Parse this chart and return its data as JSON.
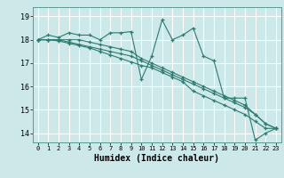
{
  "title": "",
  "xlabel": "Humidex (Indice chaleur)",
  "background_color": "#cce8e8",
  "grid_color": "#ffffff",
  "line_color": "#2d7a6e",
  "xlim": [
    -0.5,
    23.5
  ],
  "ylim": [
    13.6,
    19.4
  ],
  "yticks": [
    14,
    15,
    16,
    17,
    18,
    19
  ],
  "xticks": [
    0,
    1,
    2,
    3,
    4,
    5,
    6,
    7,
    8,
    9,
    10,
    11,
    12,
    13,
    14,
    15,
    16,
    17,
    18,
    19,
    20,
    21,
    22,
    23
  ],
  "series": [
    [
      18.0,
      18.2,
      18.1,
      18.3,
      18.2,
      18.2,
      18.0,
      18.3,
      18.3,
      18.35,
      16.3,
      17.3,
      18.85,
      18.0,
      18.2,
      18.5,
      17.3,
      17.1,
      15.5,
      15.5,
      15.5,
      13.7,
      14.0,
      14.2
    ],
    [
      18.0,
      18.0,
      18.0,
      18.0,
      18.0,
      17.9,
      17.8,
      17.7,
      17.6,
      17.5,
      17.2,
      17.0,
      16.8,
      16.6,
      16.4,
      16.2,
      16.0,
      15.8,
      15.6,
      15.4,
      15.2,
      14.8,
      14.4,
      14.2
    ],
    [
      18.0,
      18.0,
      18.0,
      17.9,
      17.8,
      17.7,
      17.6,
      17.5,
      17.4,
      17.3,
      17.1,
      16.9,
      16.7,
      16.5,
      16.3,
      16.1,
      15.9,
      15.7,
      15.5,
      15.3,
      15.1,
      14.8,
      14.4,
      14.2
    ],
    [
      18.0,
      18.0,
      17.95,
      17.85,
      17.75,
      17.65,
      17.5,
      17.35,
      17.2,
      17.05,
      16.9,
      16.8,
      16.6,
      16.4,
      16.2,
      15.8,
      15.6,
      15.4,
      15.2,
      15.0,
      14.8,
      14.5,
      14.2,
      14.2
    ]
  ]
}
